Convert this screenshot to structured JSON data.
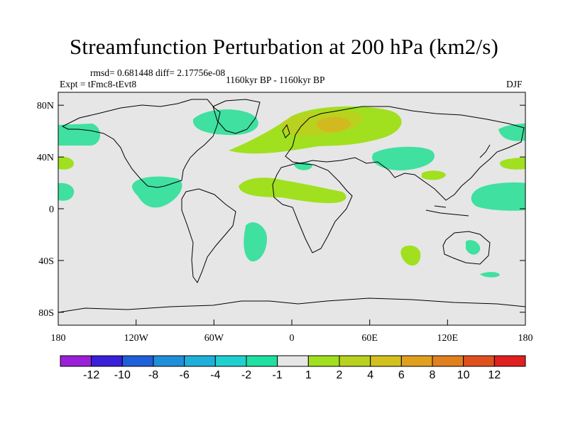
{
  "title": "Streamfunction Perturbation at 200 hPa (km2/s)",
  "stats_line": "rmsd= 0.681448 diff= 2.17756e-08",
  "expt_label": "Expt = tFmc8-tEvt8",
  "period_label": "1160kyr BP - 1160kyr BP",
  "season_label": "DJF",
  "map": {
    "background_color": "#e6e6e6",
    "lat_ticks": [
      "80N",
      "40N",
      "0",
      "40S",
      "80S"
    ],
    "lon_ticks": [
      "180",
      "120W",
      "60W",
      "0",
      "60E",
      "120E",
      "180"
    ]
  },
  "colorbar": {
    "colors": [
      "#9b1fd9",
      "#3a1fd9",
      "#1f5fd9",
      "#1f8fd9",
      "#1fb0d9",
      "#1fd0d0",
      "#1fe0a0",
      "#e6e6e6",
      "#a0e01f",
      "#b8d21f",
      "#d2c01f",
      "#e0a01f",
      "#e0801f",
      "#e0501f",
      "#e01f1f"
    ],
    "labels": [
      "-12",
      "-10",
      "-8",
      "-6",
      "-4",
      "-2",
      "-1",
      "1",
      "2",
      "4",
      "6",
      "8",
      "10",
      "12"
    ]
  },
  "fill_colors": {
    "neg_1": "#3fe0a0",
    "pos_1": "#a0e01f",
    "pos_2": "#b8d21f",
    "pos_4": "#d2b91f"
  }
}
